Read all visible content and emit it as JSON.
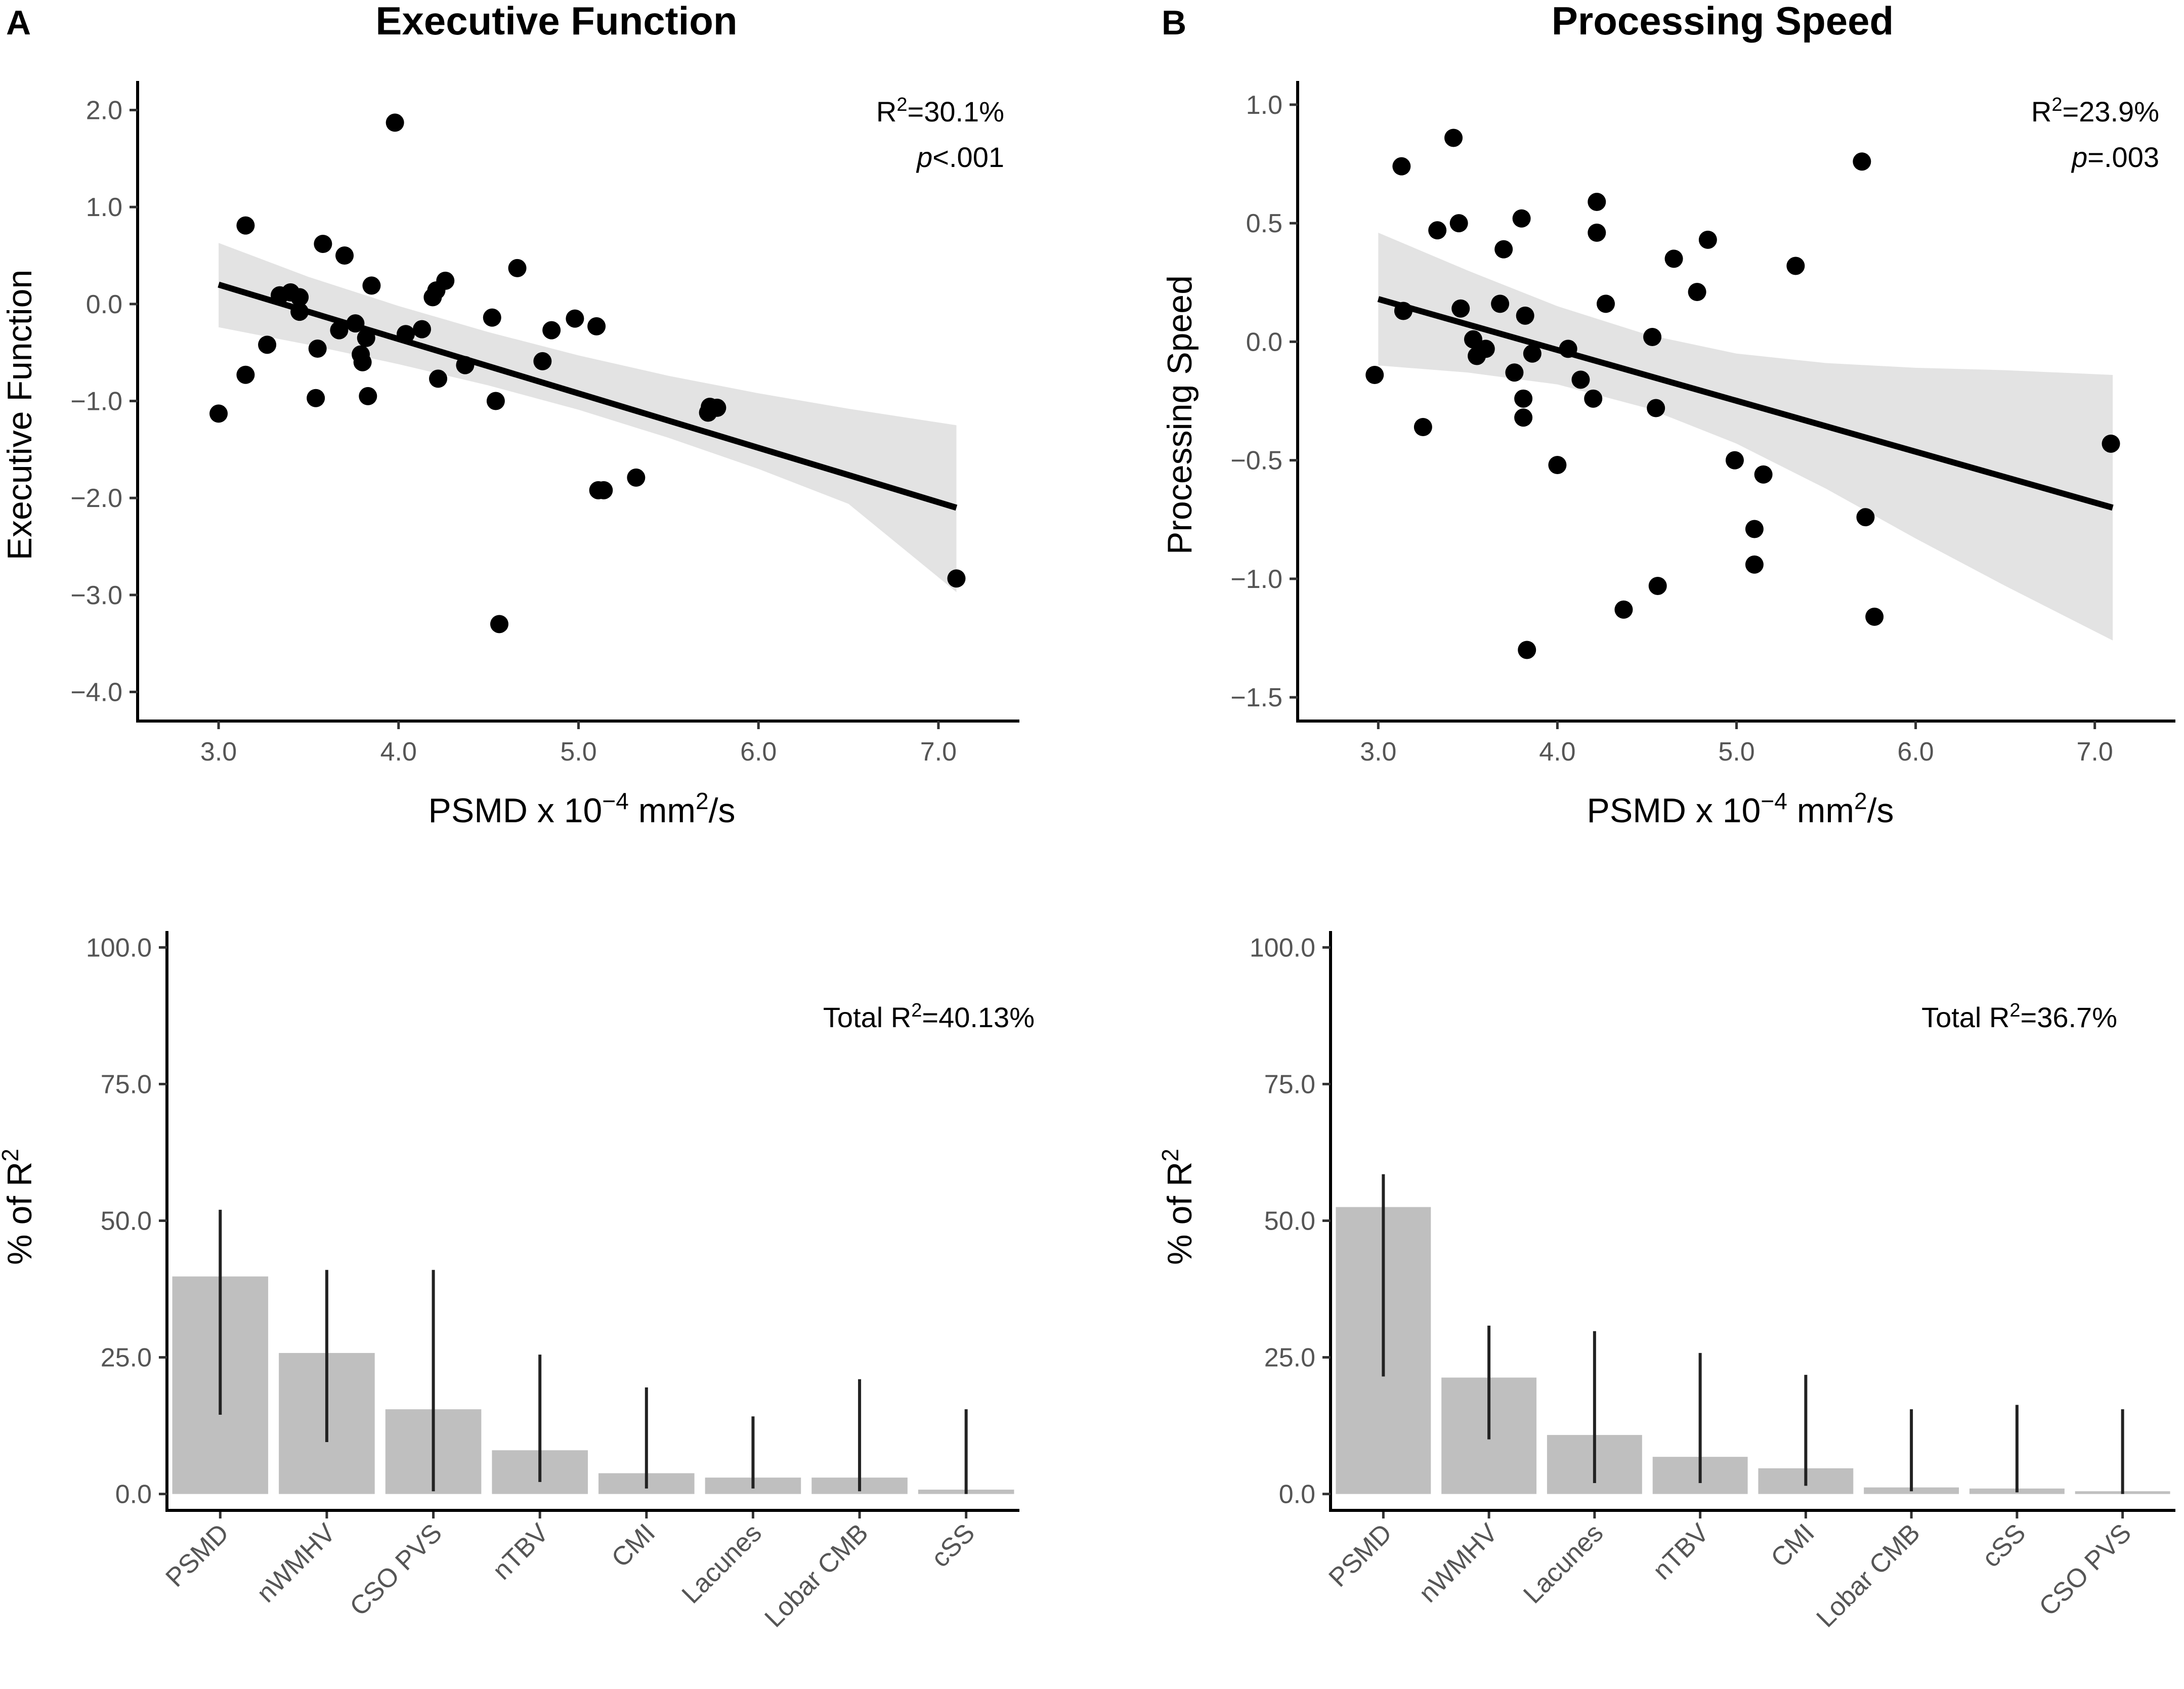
{
  "chart_data": [
    {
      "id": "A_top",
      "panel": "A",
      "type": "scatter",
      "title": "Executive Function",
      "xlabel": "PSMD x  10",
      "xlabel_exp": "−4",
      "xlabel_unit": " mm",
      "xlabel_unit_exp": "2",
      "xlabel_tail": "/s",
      "ylabel": "Executive Function",
      "xlim": [
        2.55,
        7.45
      ],
      "ylim": [
        -4.3,
        2.3
      ],
      "xticks": [
        3.0,
        4.0,
        5.0,
        6.0,
        7.0
      ],
      "xtick_labels": [
        "3.0",
        "4.0",
        "5.0",
        "6.0",
        "7.0"
      ],
      "yticks": [
        2.0,
        1.0,
        0.0,
        -1.0,
        -2.0,
        -3.0,
        -4.0
      ],
      "ytick_labels": [
        "2.0",
        "1.0",
        "0.0",
        "−1.0",
        "−2.0",
        "−3.0",
        "−4.0"
      ],
      "annotation": {
        "r2_prefix": "R",
        "r2_sup": "2",
        "r2_value": "=30.1%",
        "p_italic": "p",
        "p_value": "<.001"
      },
      "fit": {
        "x": [
          3.0,
          7.1
        ],
        "y": [
          0.2,
          -2.1
        ]
      },
      "band": {
        "x": [
          3.0,
          3.5,
          4.0,
          4.5,
          5.0,
          5.5,
          6.0,
          6.5,
          7.1
        ],
        "upper": [
          0.63,
          0.28,
          -0.02,
          -0.29,
          -0.53,
          -0.74,
          -0.92,
          -1.08,
          -1.25
        ],
        "lower": [
          -0.24,
          -0.42,
          -0.62,
          -0.84,
          -1.09,
          -1.38,
          -1.7,
          -2.06,
          -2.97
        ]
      },
      "points": [
        [
          3.0,
          -1.13
        ],
        [
          3.15,
          0.81
        ],
        [
          3.15,
          -0.73
        ],
        [
          3.27,
          -0.42
        ],
        [
          3.34,
          0.09
        ],
        [
          3.4,
          0.12
        ],
        [
          3.45,
          0.07
        ],
        [
          3.45,
          -0.08
        ],
        [
          3.54,
          -0.97
        ],
        [
          3.55,
          -0.46
        ],
        [
          3.58,
          0.62
        ],
        [
          3.67,
          -0.27
        ],
        [
          3.7,
          0.5
        ],
        [
          3.76,
          -0.2
        ],
        [
          3.79,
          -0.52
        ],
        [
          3.8,
          -0.6
        ],
        [
          3.82,
          -0.35
        ],
        [
          3.83,
          -0.95
        ],
        [
          3.85,
          0.19
        ],
        [
          3.98,
          1.87
        ],
        [
          4.04,
          -0.31
        ],
        [
          4.13,
          -0.26
        ],
        [
          4.19,
          0.07
        ],
        [
          4.21,
          0.14
        ],
        [
          4.22,
          -0.77
        ],
        [
          4.26,
          0.24
        ],
        [
          4.37,
          -0.63
        ],
        [
          4.52,
          -0.14
        ],
        [
          4.54,
          -1.0
        ],
        [
          4.56,
          -3.3
        ],
        [
          4.66,
          0.37
        ],
        [
          4.8,
          -0.59
        ],
        [
          4.85,
          -0.27
        ],
        [
          4.98,
          -0.15
        ],
        [
          5.1,
          -0.23
        ],
        [
          5.11,
          -1.92
        ],
        [
          5.14,
          -1.92
        ],
        [
          5.32,
          -1.79
        ],
        [
          5.72,
          -1.12
        ],
        [
          5.73,
          -1.06
        ],
        [
          5.77,
          -1.07
        ],
        [
          7.1,
          -2.83
        ]
      ]
    },
    {
      "id": "B_top",
      "panel": "B",
      "type": "scatter",
      "title": "Processing Speed",
      "xlabel": "PSMD x  10",
      "xlabel_exp": "−4",
      "xlabel_unit": " mm",
      "xlabel_unit_exp": "2",
      "xlabel_tail": "/s",
      "ylabel": "Processing Speed",
      "xlim": [
        2.55,
        7.45
      ],
      "ylim": [
        -1.6,
        1.1
      ],
      "xticks": [
        3.0,
        4.0,
        5.0,
        6.0,
        7.0
      ],
      "xtick_labels": [
        "3.0",
        "4.0",
        "5.0",
        "6.0",
        "7.0"
      ],
      "yticks": [
        1.0,
        0.5,
        0.0,
        -0.5,
        -1.0,
        -1.5
      ],
      "ytick_labels": [
        "1.0",
        "0.5",
        "0.0",
        "−0.5",
        "−1.0",
        "−1.5"
      ],
      "annotation": {
        "r2_prefix": "R",
        "r2_sup": "2",
        "r2_value": "=23.9%",
        "p_italic": "p",
        "p_value": "=.003"
      },
      "fit": {
        "x": [
          3.0,
          7.1
        ],
        "y": [
          0.18,
          -0.7
        ]
      },
      "band": {
        "x": [
          3.0,
          3.5,
          4.0,
          4.5,
          5.0,
          5.5,
          6.0,
          6.5,
          7.1
        ],
        "upper": [
          0.46,
          0.3,
          0.15,
          0.03,
          -0.05,
          -0.09,
          -0.11,
          -0.12,
          -0.14
        ],
        "lower": [
          -0.1,
          -0.13,
          -0.18,
          -0.28,
          -0.43,
          -0.62,
          -0.83,
          -1.03,
          -1.26
        ]
      },
      "points": [
        [
          2.98,
          -0.14
        ],
        [
          3.13,
          0.74
        ],
        [
          3.14,
          0.13
        ],
        [
          3.25,
          -0.36
        ],
        [
          3.33,
          0.47
        ],
        [
          3.42,
          0.86
        ],
        [
          3.45,
          0.5
        ],
        [
          3.46,
          0.14
        ],
        [
          3.53,
          0.01
        ],
        [
          3.55,
          -0.06
        ],
        [
          3.6,
          -0.03
        ],
        [
          3.68,
          0.16
        ],
        [
          3.7,
          0.39
        ],
        [
          3.76,
          -0.13
        ],
        [
          3.8,
          0.52
        ],
        [
          3.81,
          -0.24
        ],
        [
          3.81,
          -0.32
        ],
        [
          3.82,
          0.11
        ],
        [
          3.83,
          -1.3
        ],
        [
          3.86,
          -0.05
        ],
        [
          4.0,
          -0.52
        ],
        [
          4.06,
          -0.03
        ],
        [
          4.13,
          -0.16
        ],
        [
          4.2,
          -0.24
        ],
        [
          4.22,
          0.59
        ],
        [
          4.22,
          0.46
        ],
        [
          4.27,
          0.16
        ],
        [
          4.37,
          -1.13
        ],
        [
          4.53,
          0.02
        ],
        [
          4.55,
          -0.28
        ],
        [
          4.56,
          -1.03
        ],
        [
          4.65,
          0.35
        ],
        [
          4.78,
          0.21
        ],
        [
          4.84,
          0.43
        ],
        [
          4.99,
          -0.5
        ],
        [
          5.1,
          -0.79
        ],
        [
          5.1,
          -0.94
        ],
        [
          5.15,
          -0.56
        ],
        [
          5.33,
          0.32
        ],
        [
          5.7,
          0.76
        ],
        [
          5.72,
          -0.74
        ],
        [
          5.77,
          -1.16
        ],
        [
          7.09,
          -0.43
        ]
      ]
    },
    {
      "id": "A_bottom",
      "panel": "A",
      "type": "bar",
      "ylabel": "% of R",
      "ylabel_sup": "2",
      "ylim": [
        -3,
        103
      ],
      "yticks": [
        0,
        25,
        50,
        75,
        100
      ],
      "ytick_labels": [
        "0.0",
        "25.0",
        "50.0",
        "75.0",
        "100.0"
      ],
      "annotation": {
        "prefix": "Total R",
        "sup": "2",
        "value": "=40.13%"
      },
      "categories": [
        "PSMD",
        "nWMHV",
        "CSO PVS",
        "nTBV",
        "CMI",
        "Lacunes",
        "Lobar CMB",
        "cSS"
      ],
      "values": [
        39.8,
        25.8,
        15.5,
        8.0,
        3.8,
        3.0,
        3.0,
        0.8
      ],
      "ci_low": [
        14.5,
        9.5,
        0.5,
        2.2,
        1.0,
        1.0,
        0.5,
        0.0
      ],
      "ci_high": [
        52.0,
        41.0,
        41.0,
        25.5,
        19.5,
        14.2,
        21.0,
        15.5
      ],
      "bar_color": "#bfbfbf"
    },
    {
      "id": "B_bottom",
      "panel": "B",
      "type": "bar",
      "ylabel": "% of R",
      "ylabel_sup": "2",
      "ylim": [
        -3,
        103
      ],
      "yticks": [
        0,
        25,
        50,
        75,
        100
      ],
      "ytick_labels": [
        "0.0",
        "25.0",
        "50.0",
        "75.0",
        "100.0"
      ],
      "annotation": {
        "prefix": "Total R",
        "sup": "2",
        "value": "=36.7%"
      },
      "categories": [
        "PSMD",
        "nWMHV",
        "Lacunes",
        "nTBV",
        "CMI",
        "Lobar CMB",
        "cSS",
        "CSO PVS"
      ],
      "values": [
        52.5,
        21.3,
        10.8,
        6.8,
        4.7,
        1.2,
        1.0,
        0.5
      ],
      "ci_low": [
        21.5,
        10.0,
        2.0,
        2.0,
        1.5,
        0.5,
        0.3,
        0.0
      ],
      "ci_high": [
        58.5,
        30.8,
        29.8,
        25.8,
        21.8,
        15.5,
        16.3,
        15.5
      ],
      "bar_color": "#bfbfbf"
    }
  ],
  "colors": {
    "point": "#000000",
    "band": "#e3e3e3",
    "fit": "#000000",
    "bar": "#bfbfbf",
    "errorbar": "#222222",
    "tick_text": "#555555"
  }
}
